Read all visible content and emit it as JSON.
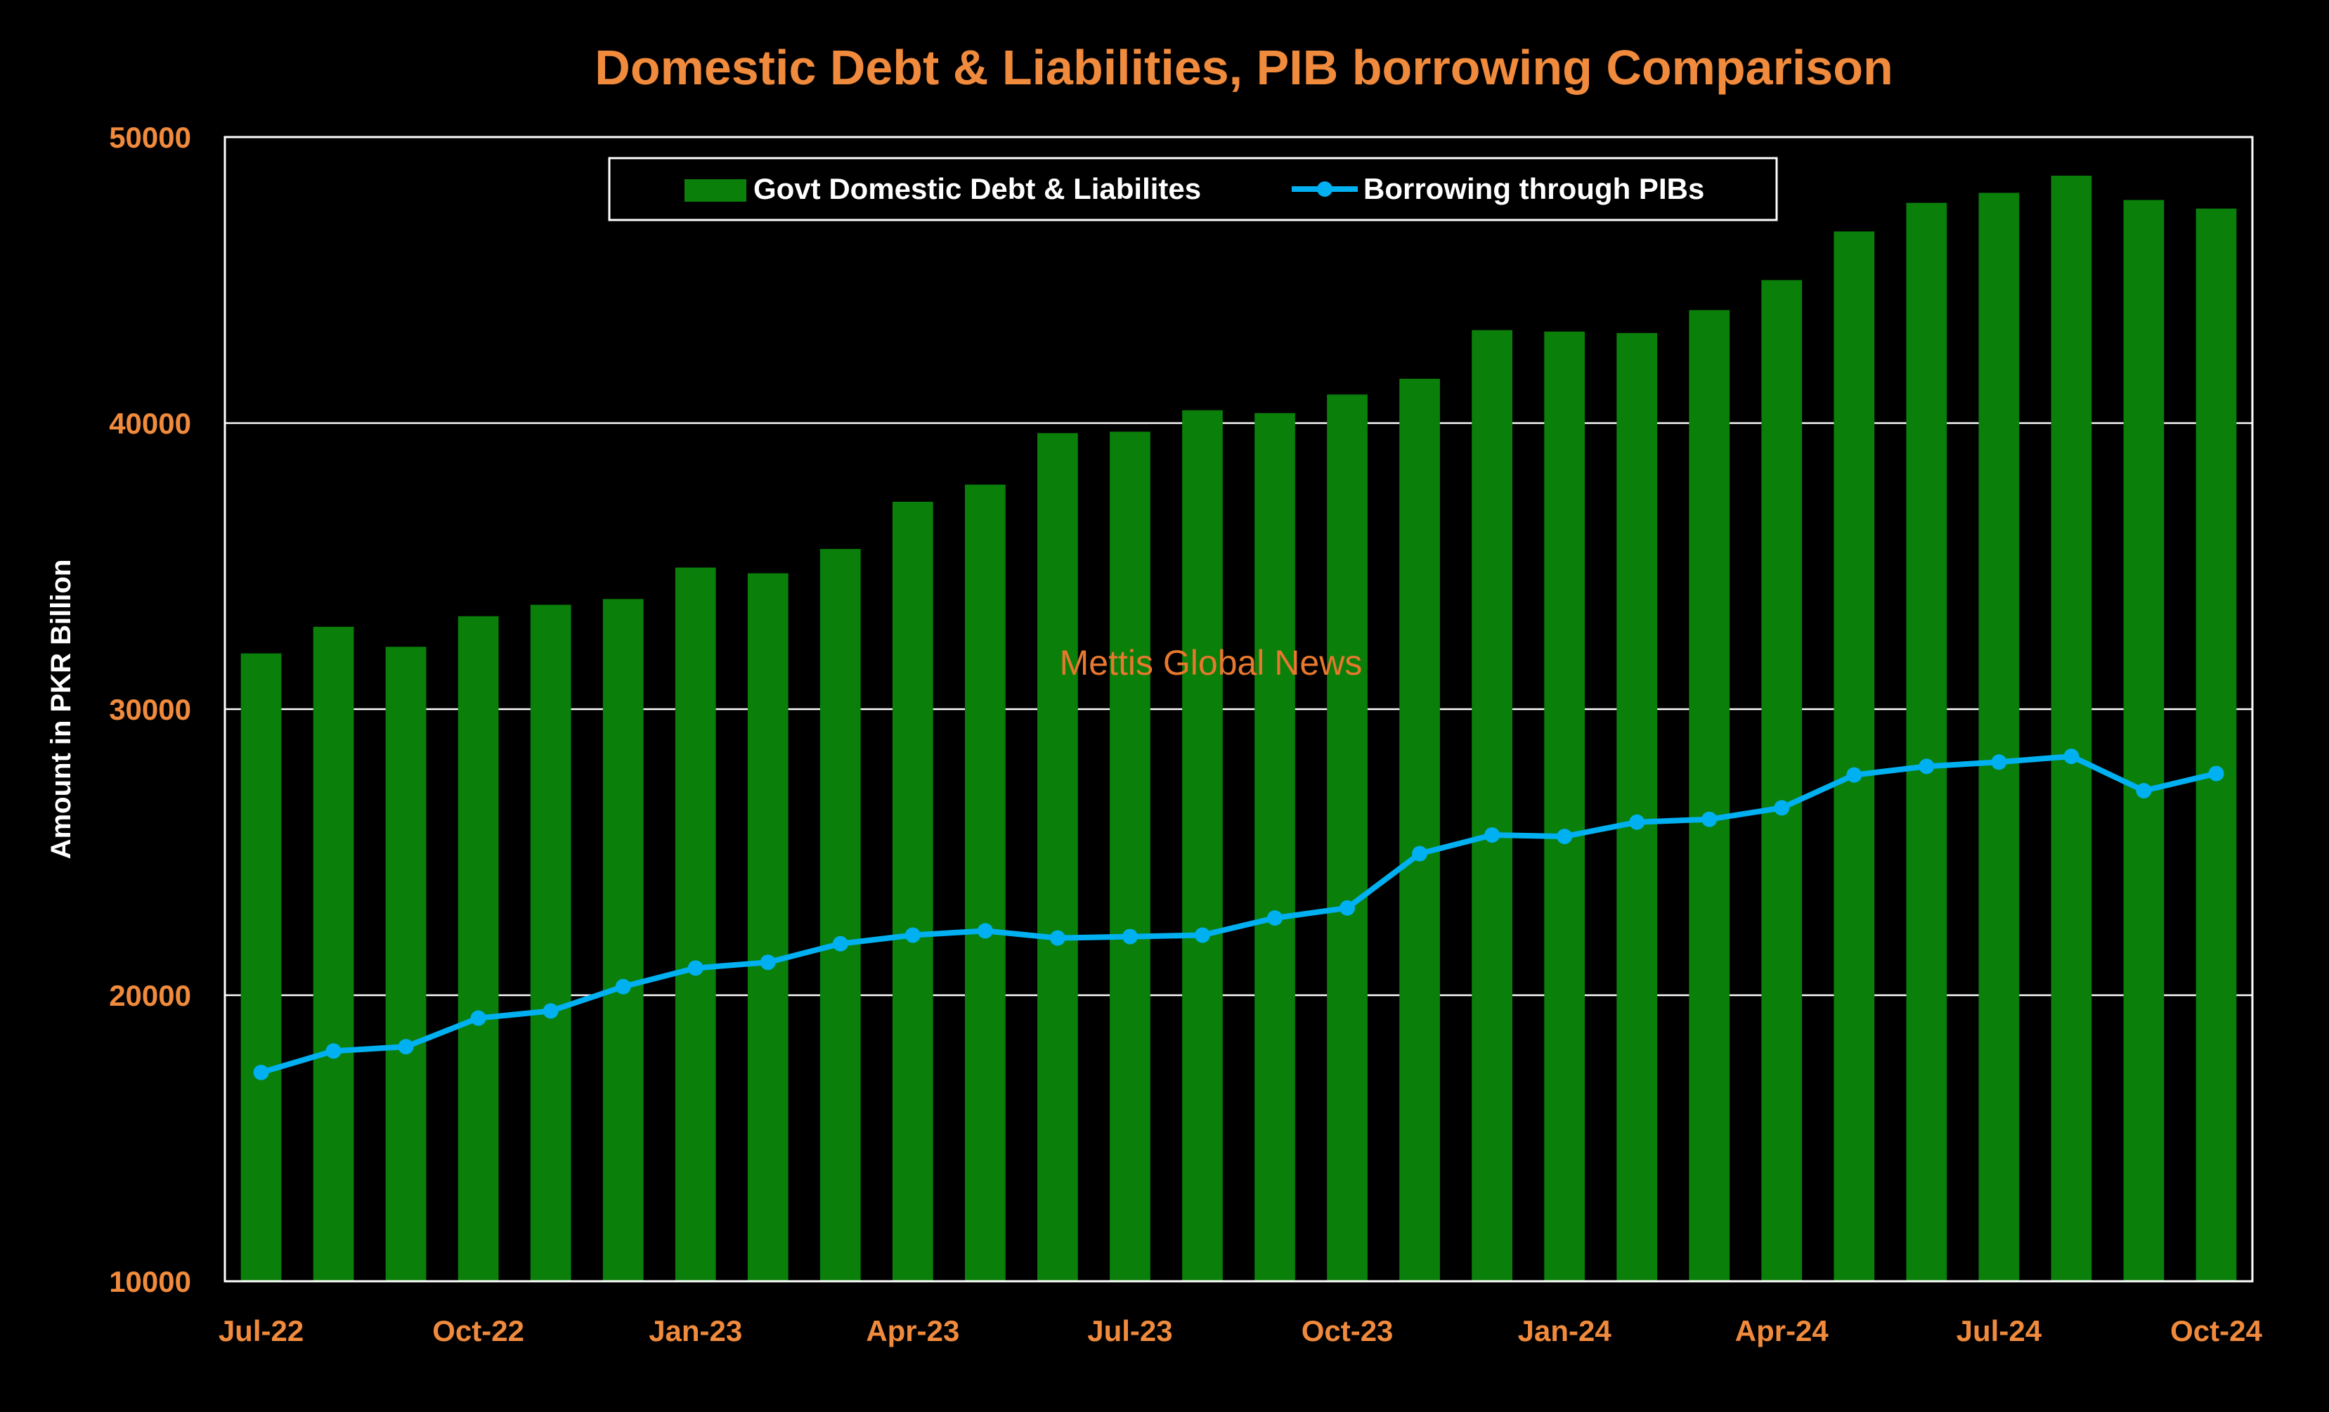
{
  "chart_data": {
    "type": "bar",
    "title": "Domestic Debt & Liabilities, PIB borrowing Comparison",
    "ylabel": "Amount in PKR Billion",
    "xlabel": "",
    "watermark": "Mettis Global News",
    "ylim": [
      10000,
      50000
    ],
    "yticks": [
      "10000",
      "20000",
      "30000",
      "40000",
      "50000"
    ],
    "ytick_values": [
      10000,
      20000,
      30000,
      40000,
      50000
    ],
    "grid": true,
    "legend_position": "top-center",
    "categories": [
      "Jul-22",
      "Aug-22",
      "Sep-22",
      "Oct-22",
      "Nov-22",
      "Dec-22",
      "Jan-23",
      "Feb-23",
      "Mar-23",
      "Apr-23",
      "May-23",
      "Jun-23",
      "Jul-23",
      "Aug-23",
      "Sep-23",
      "Oct-23",
      "Nov-23",
      "Dec-23",
      "Jan-24",
      "Feb-24",
      "Mar-24",
      "Apr-24",
      "May-24",
      "Jun-24",
      "Jul-24",
      "Aug-24",
      "Sep-24",
      "Oct-24"
    ],
    "xtick_labels": [
      {
        "index": 0,
        "label": "Jul-22"
      },
      {
        "index": 3,
        "label": "Oct-22"
      },
      {
        "index": 6,
        "label": "Jan-23"
      },
      {
        "index": 9,
        "label": "Apr-23"
      },
      {
        "index": 12,
        "label": "Jul-23"
      },
      {
        "index": 15,
        "label": "Oct-23"
      },
      {
        "index": 18,
        "label": "Jan-24"
      },
      {
        "index": 21,
        "label": "Apr-24"
      },
      {
        "index": 24,
        "label": "Jul-24"
      },
      {
        "index": 27,
        "label": "Oct-24"
      }
    ],
    "series": [
      {
        "name": "Govt Domestic Debt & Liabilites",
        "type": "bar",
        "color": "#0a7f0a",
        "values": [
          31950,
          32880,
          32180,
          33250,
          33650,
          33850,
          34950,
          34750,
          35600,
          37250,
          37850,
          39650,
          39700,
          40450,
          40350,
          41000,
          41550,
          43250,
          43200,
          43150,
          43950,
          45000,
          46700,
          47700,
          48050,
          48650,
          47800,
          47500
        ]
      },
      {
        "name": "Borrowing through PIBs",
        "type": "line",
        "color": "#00b0f0",
        "values": [
          17300,
          18050,
          18200,
          19200,
          19450,
          20300,
          20950,
          21150,
          21800,
          22100,
          22250,
          22000,
          22050,
          22100,
          22700,
          23050,
          24950,
          25600,
          25550,
          26050,
          26150,
          26550,
          27700,
          28000,
          28150,
          28350,
          27150,
          27750
        ]
      }
    ]
  },
  "colors": {
    "background": "#000000",
    "title": "#f08a3c",
    "tick_labels": "#f08a3c",
    "axis_title": "#ffffff",
    "gridlines": "#ffffff",
    "legend_text": "#ffffff",
    "watermark": "#e8782e"
  }
}
